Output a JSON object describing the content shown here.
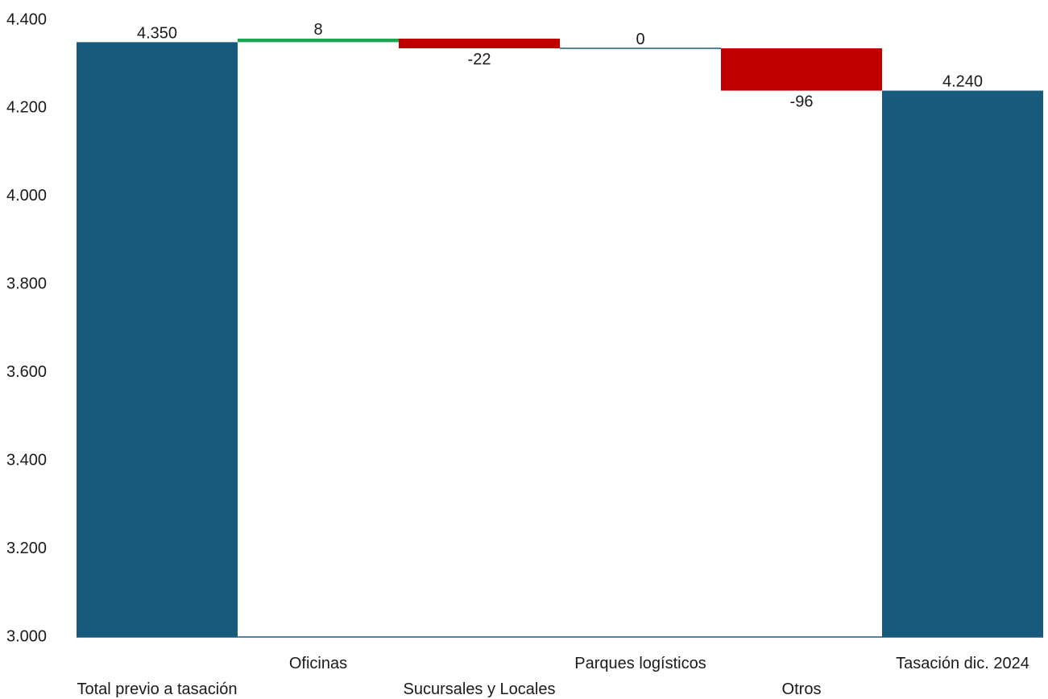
{
  "chart_data": {
    "type": "bar",
    "subtype": "waterfall",
    "title": "",
    "xlabel": "",
    "ylabel": "",
    "ylim": [
      3000,
      4400
    ],
    "yticks": [
      3000,
      3200,
      3400,
      3600,
      3800,
      4000,
      4200,
      4400
    ],
    "ytick_labels": [
      "3.000",
      "3.200",
      "3.400",
      "3.600",
      "3.800",
      "4.000",
      "4.200",
      "4.400"
    ],
    "grid": false,
    "legend": "none",
    "categories": [
      "Total previo a tasación",
      "Oficinas",
      "Sucursales y Locales",
      "Parques logísticos",
      "Otros",
      "Tasación dic. 2024"
    ],
    "kinds": [
      "total",
      "increase",
      "decrease",
      "neutral",
      "decrease",
      "total"
    ],
    "values": [
      4350,
      8,
      -22,
      0,
      -96,
      4240
    ],
    "value_labels": [
      "4.350",
      "8",
      "-22",
      "0",
      "-96",
      "4.240"
    ],
    "colors": {
      "total": "#175a7c",
      "increase": "#1aa650",
      "decrease": "#c00000",
      "neutral": "#175a7c",
      "axis": "#175a7c"
    }
  }
}
